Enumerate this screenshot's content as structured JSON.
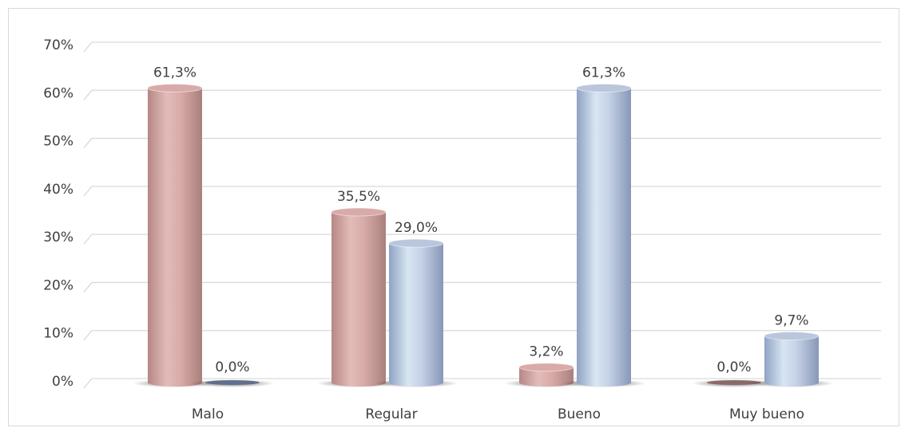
{
  "chart_data": {
    "type": "bar",
    "style": "3d-cylinder",
    "categories": [
      "Malo",
      "Regular",
      "Bueno",
      "Muy bueno"
    ],
    "series": [
      {
        "values": [
          61.3,
          35.5,
          3.2,
          0.0
        ],
        "color": "#d8aaa8",
        "labels": [
          "61,3%",
          "35,5%",
          "3,2%",
          "0,0%"
        ]
      },
      {
        "values": [
          0.0,
          29.0,
          61.3,
          9.7
        ],
        "color": "#b9c6dc",
        "labels": [
          "0,0%",
          "29,0%",
          "61,3%",
          "9,7%"
        ]
      }
    ],
    "yticks": [
      "0%",
      "10%",
      "20%",
      "30%",
      "40%",
      "50%",
      "60%",
      "70%"
    ],
    "ylim": [
      0,
      70
    ],
    "title": "",
    "xlabel": "",
    "ylabel": "",
    "grid": true,
    "legend": false
  }
}
